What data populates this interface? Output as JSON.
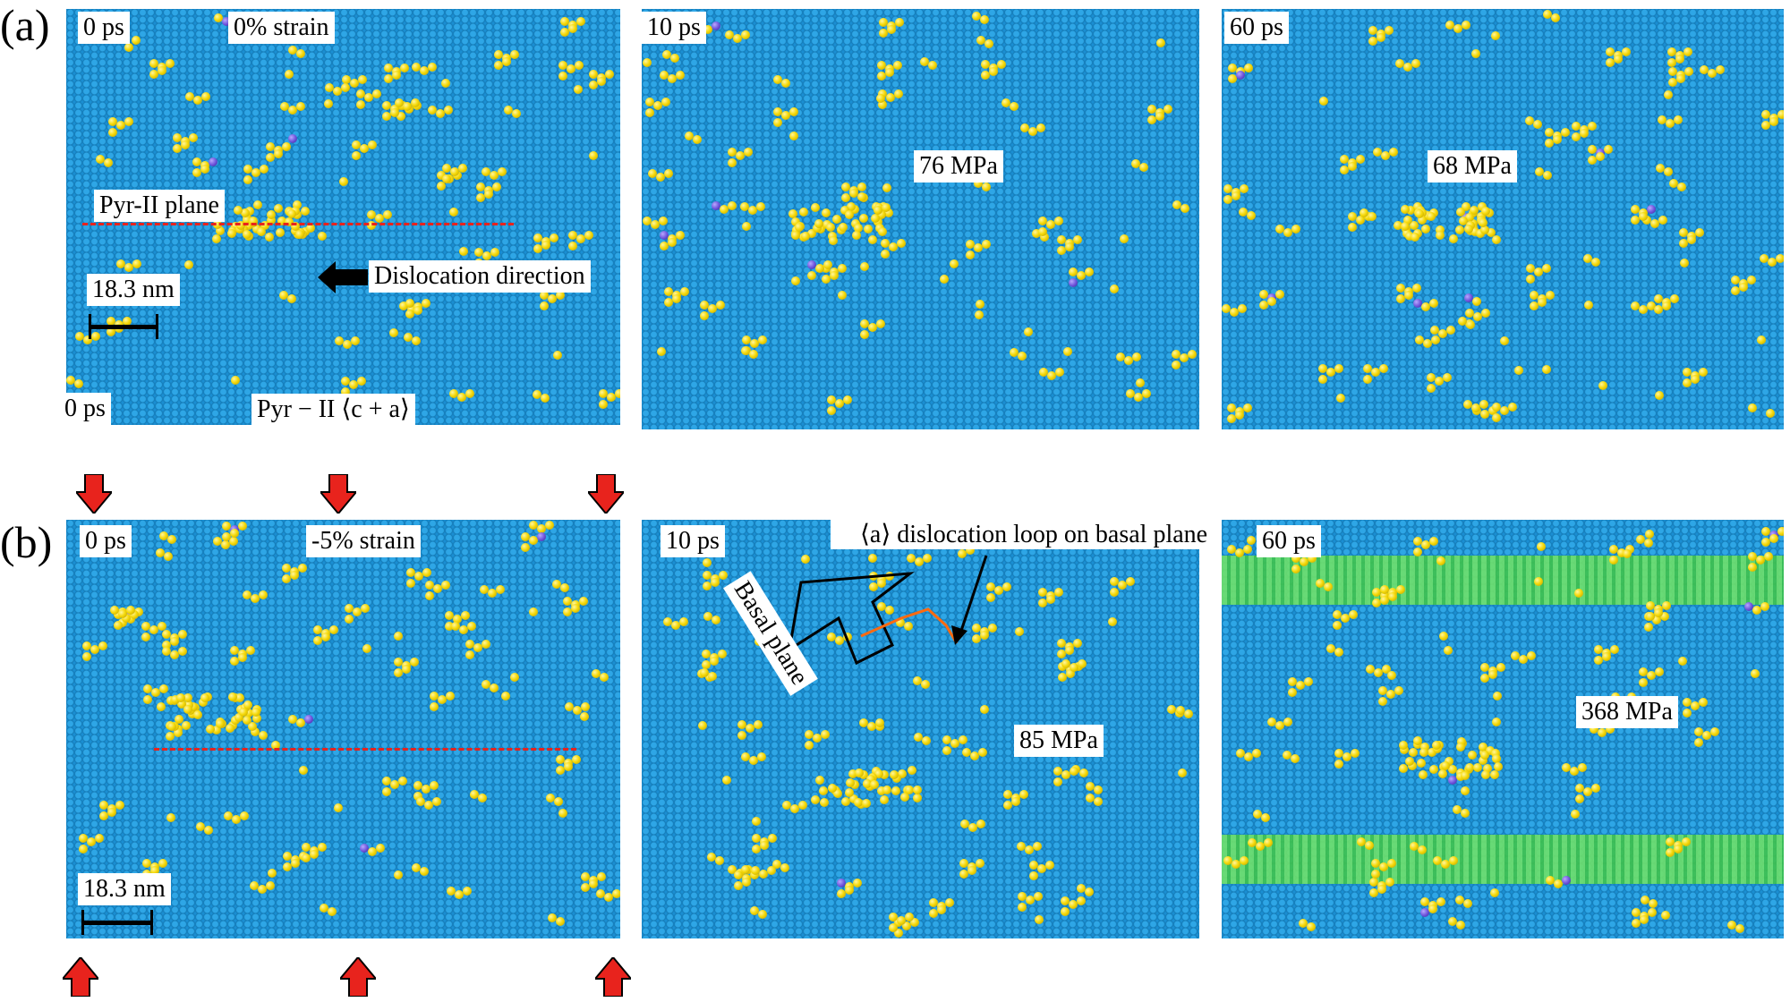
{
  "figure": {
    "row_a": {
      "label": "(a)",
      "panels": [
        {
          "time": "0 ps",
          "strain": "0% strain",
          "plane_label": "Pyr-II plane",
          "direction_label": "Dislocation direction",
          "scale_label": "18.3 nm",
          "time_bottom": "0 ps",
          "dislocation_type": "Pyr − II ⟨c + a⟩"
        },
        {
          "time": "10 ps",
          "stress": "76 MPa"
        },
        {
          "time": "60 ps",
          "stress": "68 MPa"
        }
      ]
    },
    "row_b": {
      "label": "(b)",
      "panels": [
        {
          "time": "0 ps",
          "strain": "-5% strain",
          "scale_label": "18.3 nm"
        },
        {
          "time": "10 ps",
          "loop_label": "⟨a⟩ dislocation loop on basal plane",
          "plane_label": "Basal plane",
          "stress": "85 MPa"
        },
        {
          "time": "60 ps",
          "stress": "368 MPa"
        }
      ]
    },
    "colors": {
      "matrix": "#1b8fd2",
      "atoms": "#f5d90a",
      "arrows": "#e8231d",
      "basal_band": "#4fd05a"
    }
  }
}
